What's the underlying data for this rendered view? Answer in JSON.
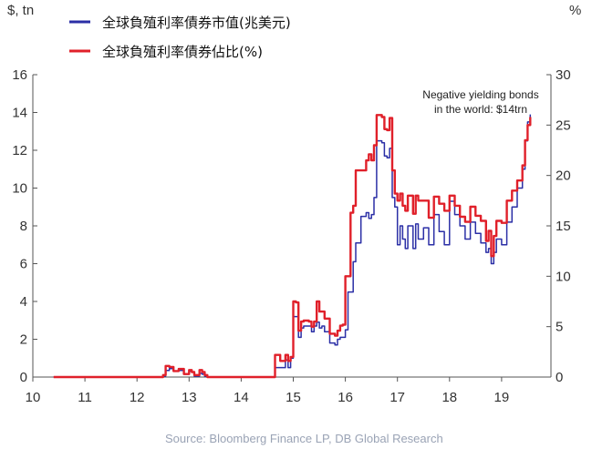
{
  "chart_data": {
    "type": "line",
    "title": "",
    "left_axis": {
      "unit_label": "$, tn",
      "ylim": [
        0,
        16
      ],
      "ticks": [
        "0",
        "2",
        "4",
        "6",
        "8",
        "10",
        "12",
        "14",
        "16"
      ]
    },
    "right_axis": {
      "unit_label": "%",
      "ylim": [
        0,
        30
      ],
      "ticks": [
        "0",
        "5",
        "10",
        "15",
        "20",
        "25",
        "30"
      ]
    },
    "x_axis": {
      "xlim": [
        10,
        20
      ],
      "ticks": [
        "10",
        "11",
        "12",
        "13",
        "14",
        "15",
        "16",
        "17",
        "18",
        "19"
      ]
    },
    "grid": false,
    "legend_position": "top-left",
    "annotation": [
      "Negative yielding bonds",
      "in the world: $14trn"
    ],
    "source": "Source: Bloomberg Finance LP, DB Global Research",
    "series": [
      {
        "name": "全球負殖利率債券市值(兆美元)",
        "color": "#2b2fa6",
        "axis": "left",
        "x": [
          10.4,
          12.4,
          12.5,
          12.55,
          12.62,
          12.7,
          12.8,
          12.9,
          13.0,
          13.05,
          13.1,
          13.15,
          13.2,
          13.25,
          13.3,
          13.35,
          14.6,
          14.65,
          14.7,
          14.75,
          14.8,
          14.85,
          14.9,
          14.95,
          15.0,
          15.05,
          15.1,
          15.15,
          15.2,
          15.3,
          15.35,
          15.4,
          15.45,
          15.5,
          15.55,
          15.6,
          15.7,
          15.8,
          15.85,
          15.9,
          15.95,
          16.0,
          16.05,
          16.1,
          16.15,
          16.2,
          16.3,
          16.4,
          16.45,
          16.5,
          16.55,
          16.6,
          16.7,
          16.75,
          16.8,
          16.85,
          16.9,
          16.95,
          17.0,
          17.05,
          17.1,
          17.15,
          17.2,
          17.3,
          17.35,
          17.4,
          17.5,
          17.6,
          17.7,
          17.8,
          17.9,
          18.0,
          18.1,
          18.2,
          18.3,
          18.4,
          18.5,
          18.6,
          18.7,
          18.75,
          18.8,
          18.85,
          18.9,
          19.0,
          19.1,
          19.2,
          19.3,
          19.4,
          19.45,
          19.5,
          19.55
        ],
        "values": [
          0,
          0,
          0.05,
          0.35,
          0.45,
          0.3,
          0.35,
          0.15,
          0.3,
          0.25,
          0.05,
          0.05,
          0.2,
          0.15,
          0.05,
          0,
          0,
          0.5,
          0.5,
          0.5,
          0.5,
          0.9,
          0.5,
          1.0,
          3.2,
          3.2,
          2.1,
          2.6,
          2.7,
          2.7,
          2.4,
          2.7,
          2.9,
          2.6,
          2.7,
          2.4,
          1.8,
          1.7,
          2.0,
          2.1,
          2.1,
          2.5,
          4.5,
          4.5,
          6.1,
          7.1,
          8.5,
          8.7,
          8.4,
          8.6,
          9.5,
          12.5,
          12.4,
          11.7,
          11.6,
          12.1,
          9.5,
          9.0,
          7.0,
          8.0,
          7.3,
          6.8,
          8.0,
          6.8,
          8.1,
          7.3,
          7.9,
          7.0,
          8.6,
          7.7,
          7.0,
          9.3,
          8.6,
          8.0,
          7.3,
          8.2,
          7.6,
          7.1,
          6.6,
          6.8,
          6.0,
          6.6,
          7.3,
          7.0,
          8.2,
          9.0,
          10.0,
          11.0,
          12.5,
          13.5,
          13.9
        ]
      },
      {
        "name": "全球負殖利率債券佔比(%)",
        "color": "#e0202a",
        "axis": "right",
        "x": [
          10.4,
          12.4,
          12.5,
          12.55,
          12.62,
          12.7,
          12.8,
          12.9,
          13.0,
          13.05,
          13.1,
          13.15,
          13.2,
          13.25,
          13.3,
          13.35,
          14.6,
          14.65,
          14.7,
          14.75,
          14.8,
          14.85,
          14.9,
          14.95,
          15.0,
          15.05,
          15.1,
          15.15,
          15.2,
          15.3,
          15.35,
          15.4,
          15.45,
          15.5,
          15.55,
          15.6,
          15.7,
          15.8,
          15.85,
          15.9,
          15.95,
          16.0,
          16.05,
          16.1,
          16.15,
          16.2,
          16.3,
          16.4,
          16.45,
          16.5,
          16.55,
          16.6,
          16.7,
          16.75,
          16.8,
          16.85,
          16.9,
          16.95,
          17.0,
          17.05,
          17.1,
          17.15,
          17.2,
          17.3,
          17.35,
          17.4,
          17.5,
          17.6,
          17.7,
          17.8,
          17.9,
          18.0,
          18.1,
          18.2,
          18.3,
          18.4,
          18.5,
          18.6,
          18.7,
          18.75,
          18.8,
          18.85,
          18.9,
          19.0,
          19.1,
          19.2,
          19.3,
          19.4,
          19.45,
          19.5,
          19.55
        ],
        "values": [
          0,
          0,
          0.2,
          1.1,
          1.0,
          0.6,
          0.8,
          0.3,
          0.7,
          0.5,
          0.2,
          0.2,
          0.7,
          0.5,
          0.2,
          0,
          0,
          2.2,
          2.2,
          1.6,
          1.6,
          2.2,
          1.6,
          2.0,
          7.5,
          7.4,
          4.6,
          5.5,
          5.6,
          5.5,
          5.0,
          5.5,
          7.5,
          6.5,
          6.5,
          5.8,
          4.3,
          4.1,
          4.6,
          5.1,
          5.2,
          10.0,
          10.0,
          16.3,
          17.0,
          20.5,
          20.5,
          21.5,
          22.1,
          21.5,
          23.0,
          26.0,
          25.8,
          24.6,
          24.5,
          25.7,
          20.5,
          18.2,
          17.5,
          18.2,
          17.0,
          16.5,
          18.0,
          16.2,
          18.0,
          17.5,
          17.5,
          15.8,
          17.9,
          17.2,
          16.5,
          18.0,
          17.0,
          15.9,
          15.4,
          16.9,
          16.0,
          15.5,
          13.5,
          14.5,
          12.0,
          14.0,
          15.5,
          15.3,
          17.5,
          18.5,
          19.5,
          21.0,
          23.5,
          25.0,
          25.8
        ]
      }
    ]
  }
}
